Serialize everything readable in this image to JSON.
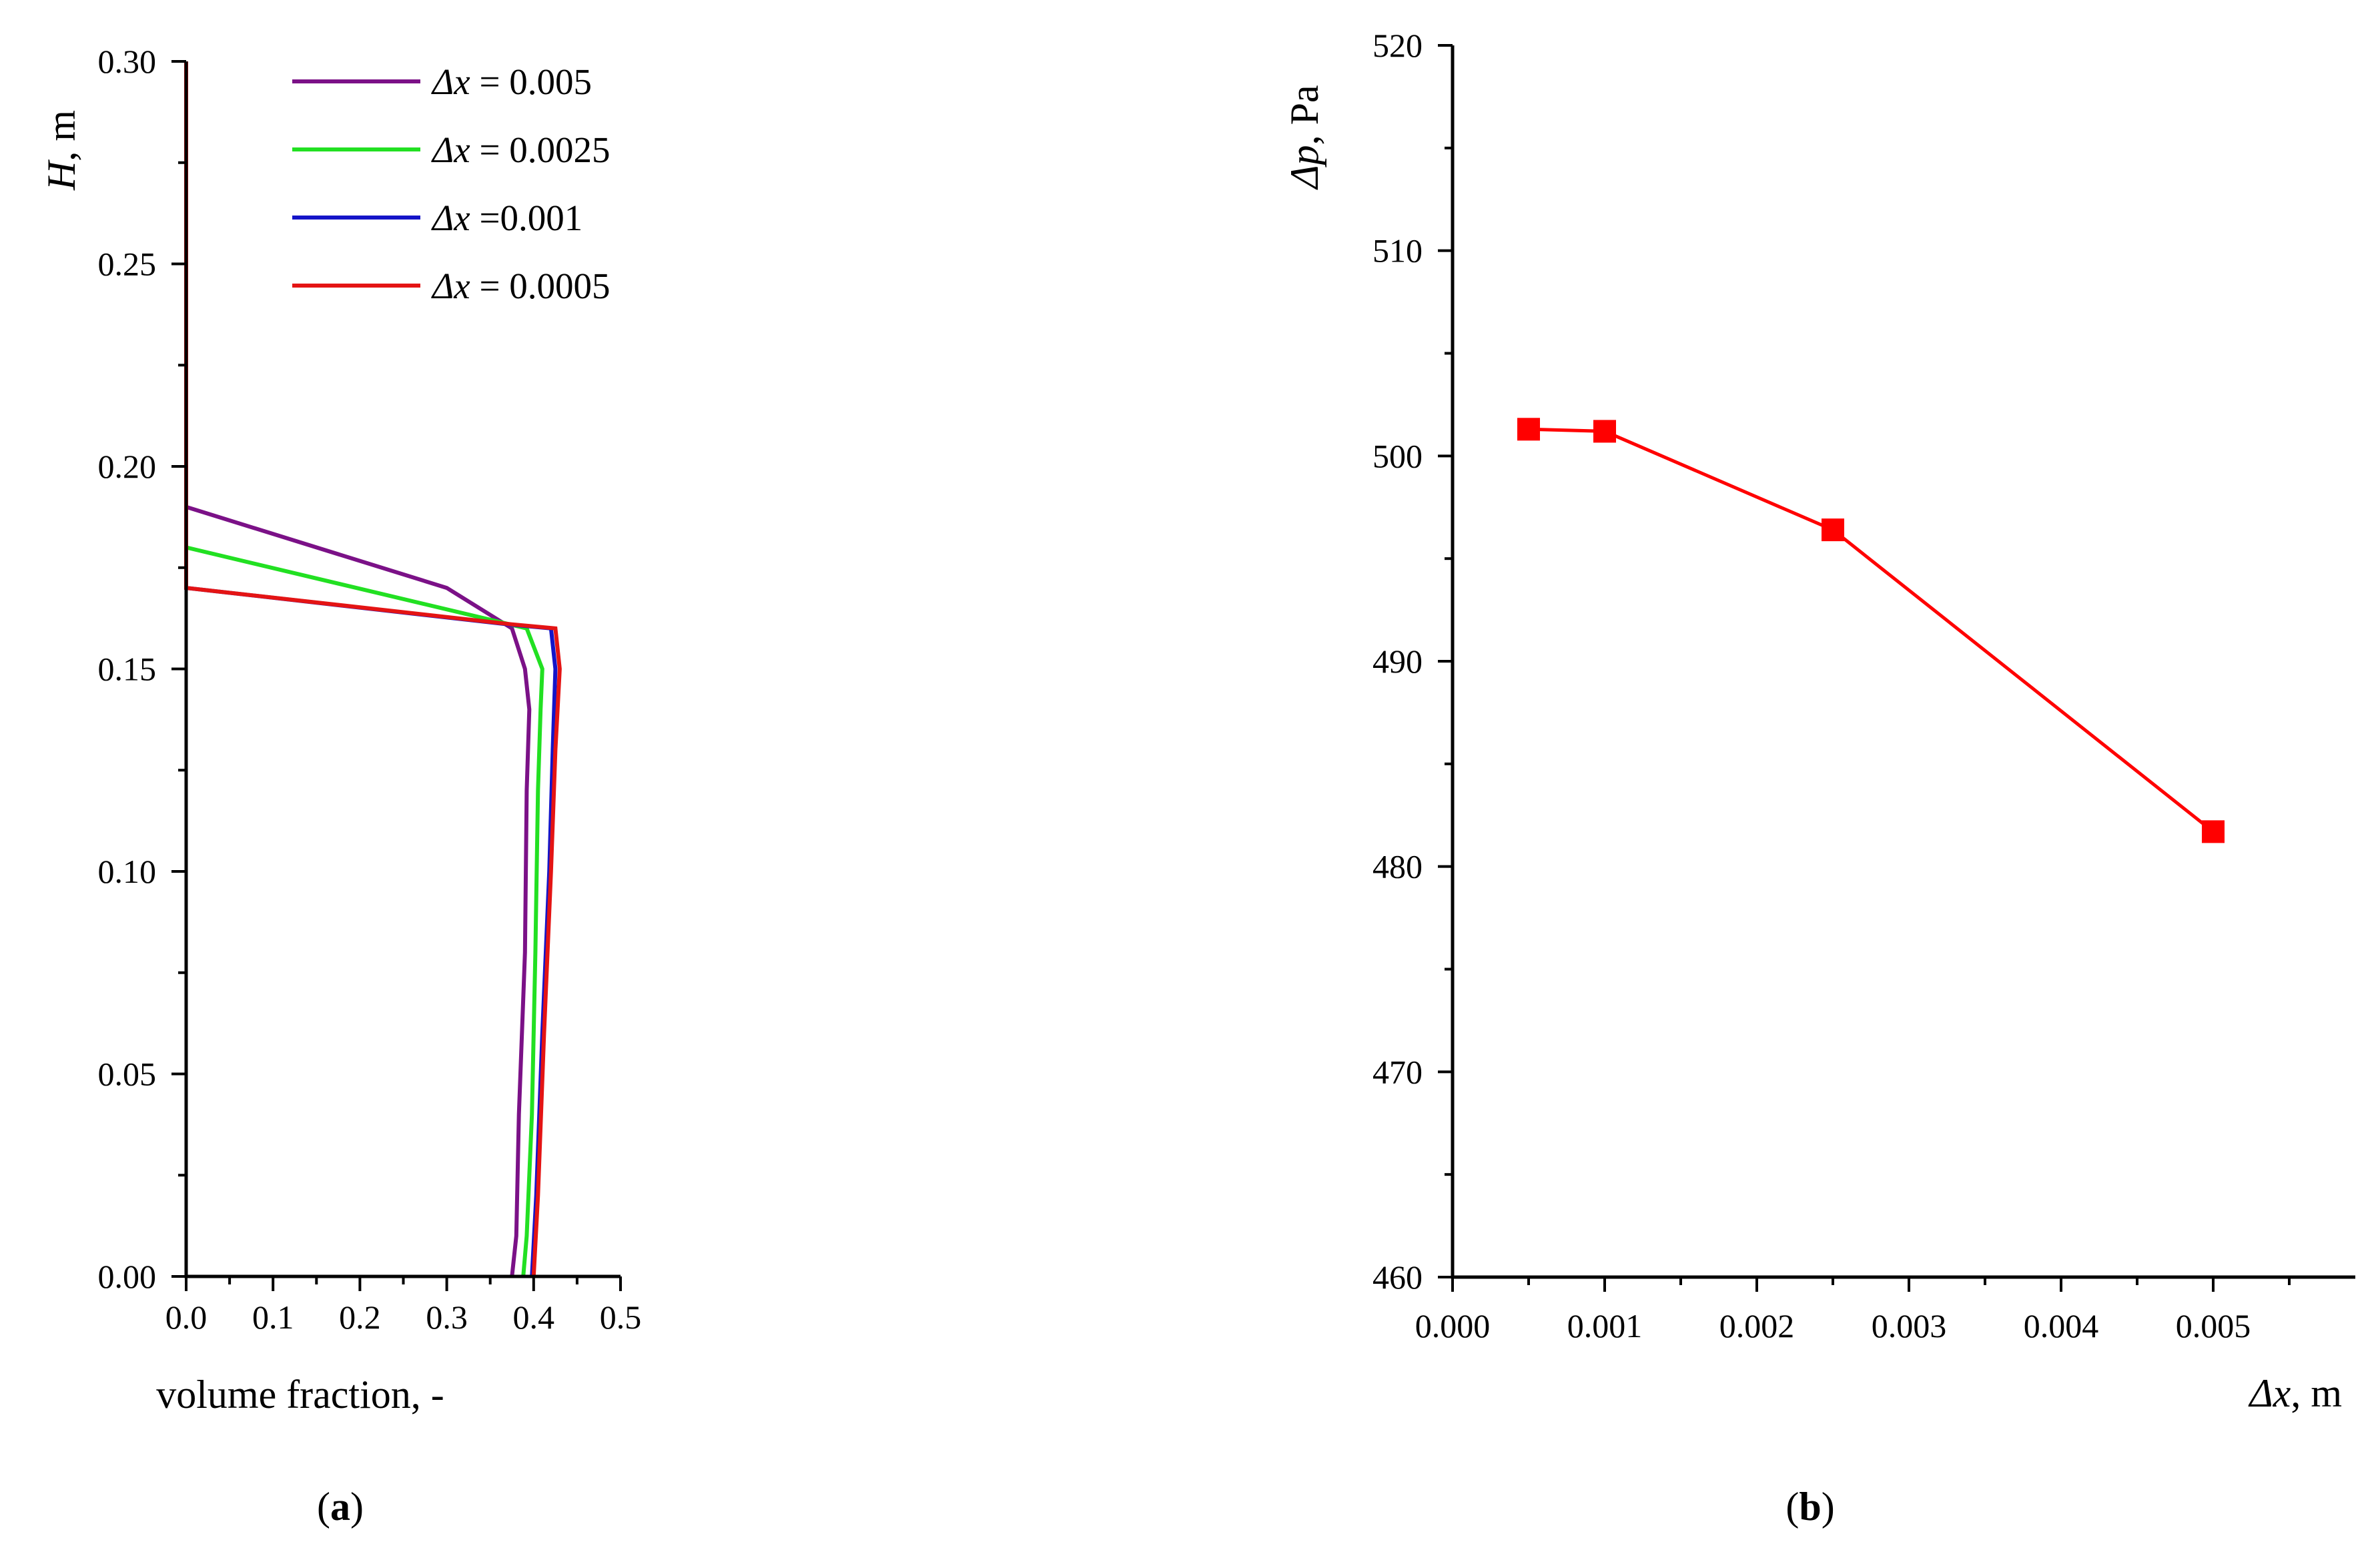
{
  "chart_data": [
    {
      "type": "line",
      "caption": "a",
      "xlabel": "volume fraction, -",
      "ylabel": {
        "symbol": "H",
        "rest": ", m"
      },
      "xlim": [
        0,
        0.5
      ],
      "ylim": [
        0,
        0.3
      ],
      "xticks": [
        "0.0",
        "0.1",
        "0.2",
        "0.3",
        "0.4",
        "0.5"
      ],
      "yticks": [
        "0.00",
        "0.05",
        "0.10",
        "0.15",
        "0.20",
        "0.25",
        "0.30"
      ],
      "legend_position": "top-right",
      "grid": false,
      "series": [
        {
          "name": {
            "symbol": "Δx",
            "rest": " = 0.005"
          },
          "color": "#7B1187",
          "points": [
            [
              0.375,
              0.0
            ],
            [
              0.38,
              0.01
            ],
            [
              0.383,
              0.04
            ],
            [
              0.39,
              0.08
            ],
            [
              0.392,
              0.12
            ],
            [
              0.395,
              0.14
            ],
            [
              0.39,
              0.15
            ],
            [
              0.375,
              0.16
            ],
            [
              0.3,
              0.17
            ],
            [
              0.0,
              0.19
            ],
            [
              0.0,
              0.3
            ]
          ]
        },
        {
          "name": {
            "symbol": "Δx",
            "rest": " = 0.0025"
          },
          "color": "#22E022",
          "points": [
            [
              0.388,
              0.0
            ],
            [
              0.392,
              0.01
            ],
            [
              0.398,
              0.04
            ],
            [
              0.402,
              0.08
            ],
            [
              0.405,
              0.12
            ],
            [
              0.408,
              0.14
            ],
            [
              0.41,
              0.15
            ],
            [
              0.392,
              0.16
            ],
            [
              0.0,
              0.18
            ],
            [
              0.0,
              0.3
            ]
          ]
        },
        {
          "name": {
            "symbol": "Δx",
            "rest": " =0.001"
          },
          "color": "#1414C8",
          "points": [
            [
              0.398,
              0.0
            ],
            [
              0.403,
              0.02
            ],
            [
              0.41,
              0.06
            ],
            [
              0.418,
              0.1
            ],
            [
              0.422,
              0.13
            ],
            [
              0.425,
              0.15
            ],
            [
              0.42,
              0.16
            ],
            [
              0.37,
              0.161
            ],
            [
              0.0,
              0.17
            ],
            [
              0.0,
              0.3
            ]
          ]
        },
        {
          "name": {
            "symbol": "Δx",
            "rest": " = 0.0005"
          },
          "color": "#E41414",
          "points": [
            [
              0.4,
              0.0
            ],
            [
              0.405,
              0.02
            ],
            [
              0.412,
              0.06
            ],
            [
              0.42,
              0.1
            ],
            [
              0.425,
              0.13
            ],
            [
              0.43,
              0.15
            ],
            [
              0.425,
              0.16
            ],
            [
              0.375,
              0.161
            ],
            [
              0.0,
              0.17
            ],
            [
              0.0,
              0.3
            ]
          ]
        }
      ]
    },
    {
      "type": "line",
      "caption": "b",
      "xlabel": {
        "symbol": "Δx",
        "rest": ", m"
      },
      "ylabel": {
        "symbol": "Δp",
        "rest": ", Pa"
      },
      "xlim": [
        0,
        0.006
      ],
      "ylim": [
        460,
        520
      ],
      "xticks": [
        "0.000",
        "0.001",
        "0.002",
        "0.003",
        "0.004",
        "0.005"
      ],
      "yticks": [
        "460",
        "470",
        "480",
        "490",
        "500",
        "510",
        "520"
      ],
      "grid": false,
      "series": [
        {
          "marker": "square",
          "color": "#FF0000",
          "x": [
            0.0005,
            0.001,
            0.0025,
            0.005
          ],
          "y": [
            501.3,
            501.2,
            496.4,
            481.7
          ]
        }
      ]
    }
  ]
}
